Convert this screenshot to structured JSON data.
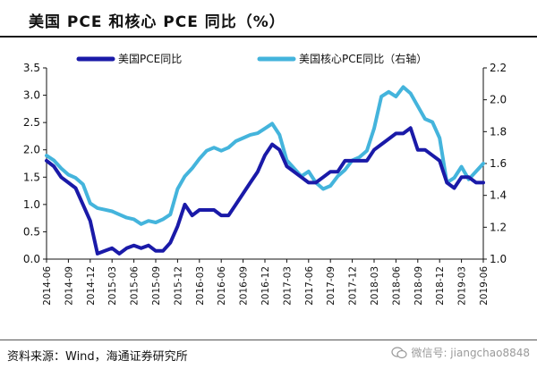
{
  "header": {
    "title": "美国 PCE 和核心 PCE 同比（%）"
  },
  "footer": {
    "source": "资料来源：Wind，海通证券研究所",
    "watermark": "微信号: jiangchao8848"
  },
  "colors": {
    "pce": "#1a1aa8",
    "core_pce": "#44b4dc"
  },
  "chart_data": {
    "type": "line",
    "title": "美国 PCE 和核心 PCE 同比（%）",
    "x": [
      "2014-06",
      "2014-07",
      "2014-08",
      "2014-09",
      "2014-10",
      "2014-11",
      "2014-12",
      "2015-01",
      "2015-02",
      "2015-03",
      "2015-04",
      "2015-05",
      "2015-06",
      "2015-07",
      "2015-08",
      "2015-09",
      "2015-10",
      "2015-11",
      "2015-12",
      "2016-01",
      "2016-02",
      "2016-03",
      "2016-04",
      "2016-05",
      "2016-06",
      "2016-07",
      "2016-08",
      "2016-09",
      "2016-10",
      "2016-11",
      "2016-12",
      "2017-01",
      "2017-02",
      "2017-03",
      "2017-04",
      "2017-05",
      "2017-06",
      "2017-07",
      "2017-08",
      "2017-09",
      "2017-10",
      "2017-11",
      "2017-12",
      "2018-01",
      "2018-02",
      "2018-03",
      "2018-04",
      "2018-05",
      "2018-06",
      "2018-07",
      "2018-08",
      "2018-09",
      "2018-10",
      "2018-11",
      "2018-12",
      "2019-01",
      "2019-02",
      "2019-03",
      "2019-04",
      "2019-05",
      "2019-06"
    ],
    "x_tick_labels": [
      "2014-06",
      "2014-09",
      "2014-12",
      "2015-03",
      "2015-06",
      "2015-09",
      "2015-12",
      "2016-03",
      "2016-06",
      "2016-09",
      "2016-12",
      "2017-03",
      "2017-06",
      "2017-09",
      "2017-12",
      "2018-03",
      "2018-06",
      "2018-09",
      "2018-12",
      "2019-03",
      "2019-06"
    ],
    "series": [
      {
        "name": "美国PCE同比",
        "axis": "left",
        "values": [
          1.8,
          1.7,
          1.5,
          1.4,
          1.3,
          1.0,
          0.7,
          0.1,
          0.15,
          0.2,
          0.1,
          0.2,
          0.25,
          0.2,
          0.25,
          0.15,
          0.15,
          0.3,
          0.6,
          1.0,
          0.8,
          0.9,
          0.9,
          0.9,
          0.8,
          0.8,
          1.0,
          1.2,
          1.4,
          1.6,
          1.9,
          2.1,
          2.0,
          1.7,
          1.6,
          1.5,
          1.4,
          1.4,
          1.5,
          1.6,
          1.6,
          1.8,
          1.8,
          1.8,
          1.8,
          2.0,
          2.1,
          2.2,
          2.3,
          2.3,
          2.4,
          2.0,
          2.0,
          1.9,
          1.8,
          1.4,
          1.3,
          1.5,
          1.5,
          1.4,
          1.4
        ]
      },
      {
        "name": "美国核心PCE同比（右轴）",
        "axis": "right",
        "values": [
          1.65,
          1.62,
          1.57,
          1.53,
          1.51,
          1.47,
          1.35,
          1.32,
          1.31,
          1.3,
          1.28,
          1.26,
          1.25,
          1.22,
          1.24,
          1.23,
          1.25,
          1.28,
          1.44,
          1.52,
          1.57,
          1.63,
          1.68,
          1.7,
          1.68,
          1.7,
          1.74,
          1.76,
          1.78,
          1.79,
          1.82,
          1.85,
          1.78,
          1.62,
          1.57,
          1.52,
          1.55,
          1.48,
          1.44,
          1.46,
          1.52,
          1.56,
          1.62,
          1.64,
          1.68,
          1.82,
          2.02,
          2.05,
          2.02,
          2.08,
          2.04,
          1.96,
          1.88,
          1.86,
          1.76,
          1.48,
          1.51,
          1.58,
          1.5,
          1.55,
          1.6
        ]
      }
    ],
    "ylim_left": [
      0.0,
      3.5
    ],
    "yticks_left": [
      "0.0",
      "0.5",
      "1.0",
      "1.5",
      "2.0",
      "2.5",
      "3.0",
      "3.5"
    ],
    "ylim_right": [
      1.0,
      2.2
    ],
    "yticks_right": [
      "1.0",
      "1.2",
      "1.4",
      "1.6",
      "1.8",
      "2.0",
      "2.2"
    ],
    "legend_position": "top",
    "grid": false
  }
}
